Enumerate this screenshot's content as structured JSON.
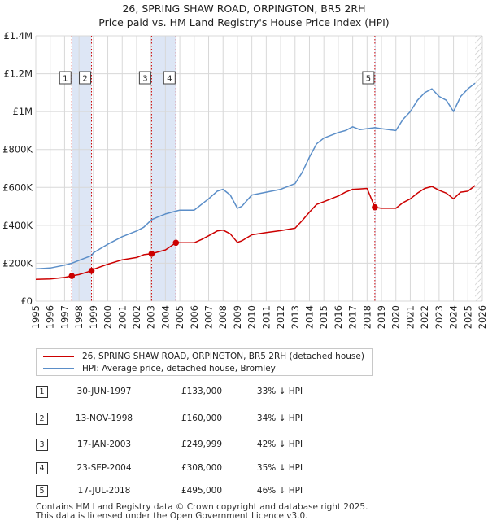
{
  "title": {
    "line1": "26, SPRING SHAW ROAD, ORPINGTON, BR5 2RH",
    "line2": "Price paid vs. HM Land Registry's House Price Index (HPI)"
  },
  "legend": {
    "property_label": "26, SPRING SHAW ROAD, ORPINGTON, BR5 2RH (detached house)",
    "hpi_label": "HPI: Average price, detached house, Bromley"
  },
  "colors": {
    "property": "#cc0000",
    "hpi": "#5b8ec8",
    "shade": "#dde6f5",
    "grid": "#d8d8d8"
  },
  "transactions": [
    {
      "num": "1",
      "date": "30-JUN-1997",
      "price": "£133,000",
      "relation": "33% ↓ HPI"
    },
    {
      "num": "2",
      "date": "13-NOV-1998",
      "price": "£160,000",
      "relation": "34% ↓ HPI"
    },
    {
      "num": "3",
      "date": "17-JAN-2003",
      "price": "£249,999",
      "relation": "42% ↓ HPI"
    },
    {
      "num": "4",
      "date": "23-SEP-2004",
      "price": "£308,000",
      "relation": "35% ↓ HPI"
    },
    {
      "num": "5",
      "date": "17-JUL-2018",
      "price": "£495,000",
      "relation": "46% ↓ HPI"
    }
  ],
  "footer": {
    "line1": "Contains HM Land Registry data © Crown copyright and database right 2025.",
    "line2": "This data is licensed under the Open Government Licence v3.0."
  },
  "chart_data": {
    "type": "line",
    "title": "26, SPRING SHAW ROAD, ORPINGTON, BR5 2RH",
    "subtitle": "Price paid vs. HM Land Registry's House Price Index (HPI)",
    "xlabel": "",
    "ylabel": "",
    "xlim": [
      1995,
      2026
    ],
    "ylim": [
      0,
      1400000
    ],
    "x_ticks": [
      1995,
      1996,
      1997,
      1998,
      1999,
      2000,
      2001,
      2002,
      2003,
      2004,
      2005,
      2006,
      2007,
      2008,
      2009,
      2010,
      2011,
      2012,
      2013,
      2014,
      2015,
      2016,
      2017,
      2018,
      2019,
      2020,
      2021,
      2022,
      2023,
      2024,
      2025,
      2026
    ],
    "y_ticks": [
      {
        "value": 0,
        "label": "£0"
      },
      {
        "value": 200000,
        "label": "£200K"
      },
      {
        "value": 400000,
        "label": "£400K"
      },
      {
        "value": 600000,
        "label": "£600K"
      },
      {
        "value": 800000,
        "label": "£800K"
      },
      {
        "value": 1000000,
        "label": "£1M"
      },
      {
        "value": 1200000,
        "label": "£1.2M"
      },
      {
        "value": 1400000,
        "label": "£1.4M"
      }
    ],
    "grid": true,
    "shaded_ranges": [
      [
        1997.5,
        1998.87
      ],
      [
        2003.04,
        2004.73
      ],
      [
        2018.54,
        2018.6
      ]
    ],
    "hatched_from": 2025.5,
    "series": [
      {
        "name": "HPI: Average price, detached house, Bromley",
        "x": [
          1995,
          1996,
          1997,
          1997.5,
          1998,
          1998.87,
          1999,
          2000,
          2001,
          2002,
          2002.5,
          2003.04,
          2003.5,
          2004,
          2004.73,
          2005,
          2006,
          2006.5,
          2007,
          2007.6,
          2008,
          2008.5,
          2009,
          2009.3,
          2010,
          2011,
          2012,
          2013,
          2013.5,
          2014,
          2014.5,
          2015,
          2016,
          2016.5,
          2017,
          2017.5,
          2018,
          2018.54,
          2019,
          2020,
          2020.5,
          2021,
          2021.5,
          2022,
          2022.5,
          2023,
          2023.5,
          2024,
          2024.5,
          2025,
          2025.5
        ],
        "values": [
          170000,
          175000,
          190000,
          200000,
          215000,
          240000,
          255000,
          300000,
          340000,
          370000,
          390000,
          430000,
          445000,
          460000,
          475000,
          480000,
          480000,
          510000,
          540000,
          580000,
          590000,
          560000,
          490000,
          500000,
          560000,
          575000,
          590000,
          620000,
          680000,
          760000,
          830000,
          860000,
          890000,
          900000,
          920000,
          905000,
          910000,
          915000,
          910000,
          900000,
          960000,
          1000000,
          1060000,
          1100000,
          1120000,
          1080000,
          1060000,
          1000000,
          1080000,
          1120000,
          1150000
        ]
      },
      {
        "name": "26, SPRING SHAW ROAD, ORPINGTON, BR5 2RH (detached house)",
        "x": [
          1995,
          1996,
          1997,
          1997.5,
          1998,
          1998.87,
          1999,
          2000,
          2001,
          2002,
          2002.5,
          2003.04,
          2003.5,
          2004,
          2004.73,
          2005,
          2006,
          2006.5,
          2007,
          2007.6,
          2008,
          2008.5,
          2009,
          2009.3,
          2010,
          2011,
          2012,
          2013,
          2013.5,
          2014,
          2014.5,
          2015,
          2016,
          2016.5,
          2017,
          2017.5,
          2018,
          2018.54,
          2019,
          2020,
          2020.5,
          2021,
          2021.5,
          2022,
          2022.5,
          2023,
          2023.5,
          2024,
          2024.5,
          2025,
          2025.5
        ],
        "values": [
          115000,
          117000,
          125000,
          133000,
          140000,
          160000,
          168000,
          195000,
          218000,
          230000,
          245000,
          249999,
          260000,
          270000,
          308000,
          308000,
          308000,
          325000,
          345000,
          370000,
          375000,
          355000,
          310000,
          318000,
          350000,
          362000,
          372000,
          385000,
          425000,
          470000,
          510000,
          525000,
          555000,
          575000,
          590000,
          592000,
          595000,
          495000,
          490000,
          490000,
          520000,
          540000,
          570000,
          595000,
          605000,
          585000,
          570000,
          540000,
          575000,
          580000,
          610000
        ]
      }
    ],
    "sale_points": [
      {
        "label": "1",
        "x": 1997.5,
        "value": 133000
      },
      {
        "label": "2",
        "x": 1998.87,
        "value": 160000
      },
      {
        "label": "3",
        "x": 2003.04,
        "value": 249999
      },
      {
        "label": "4",
        "x": 2004.73,
        "value": 308000
      },
      {
        "label": "5",
        "x": 2018.54,
        "value": 495000
      }
    ]
  }
}
